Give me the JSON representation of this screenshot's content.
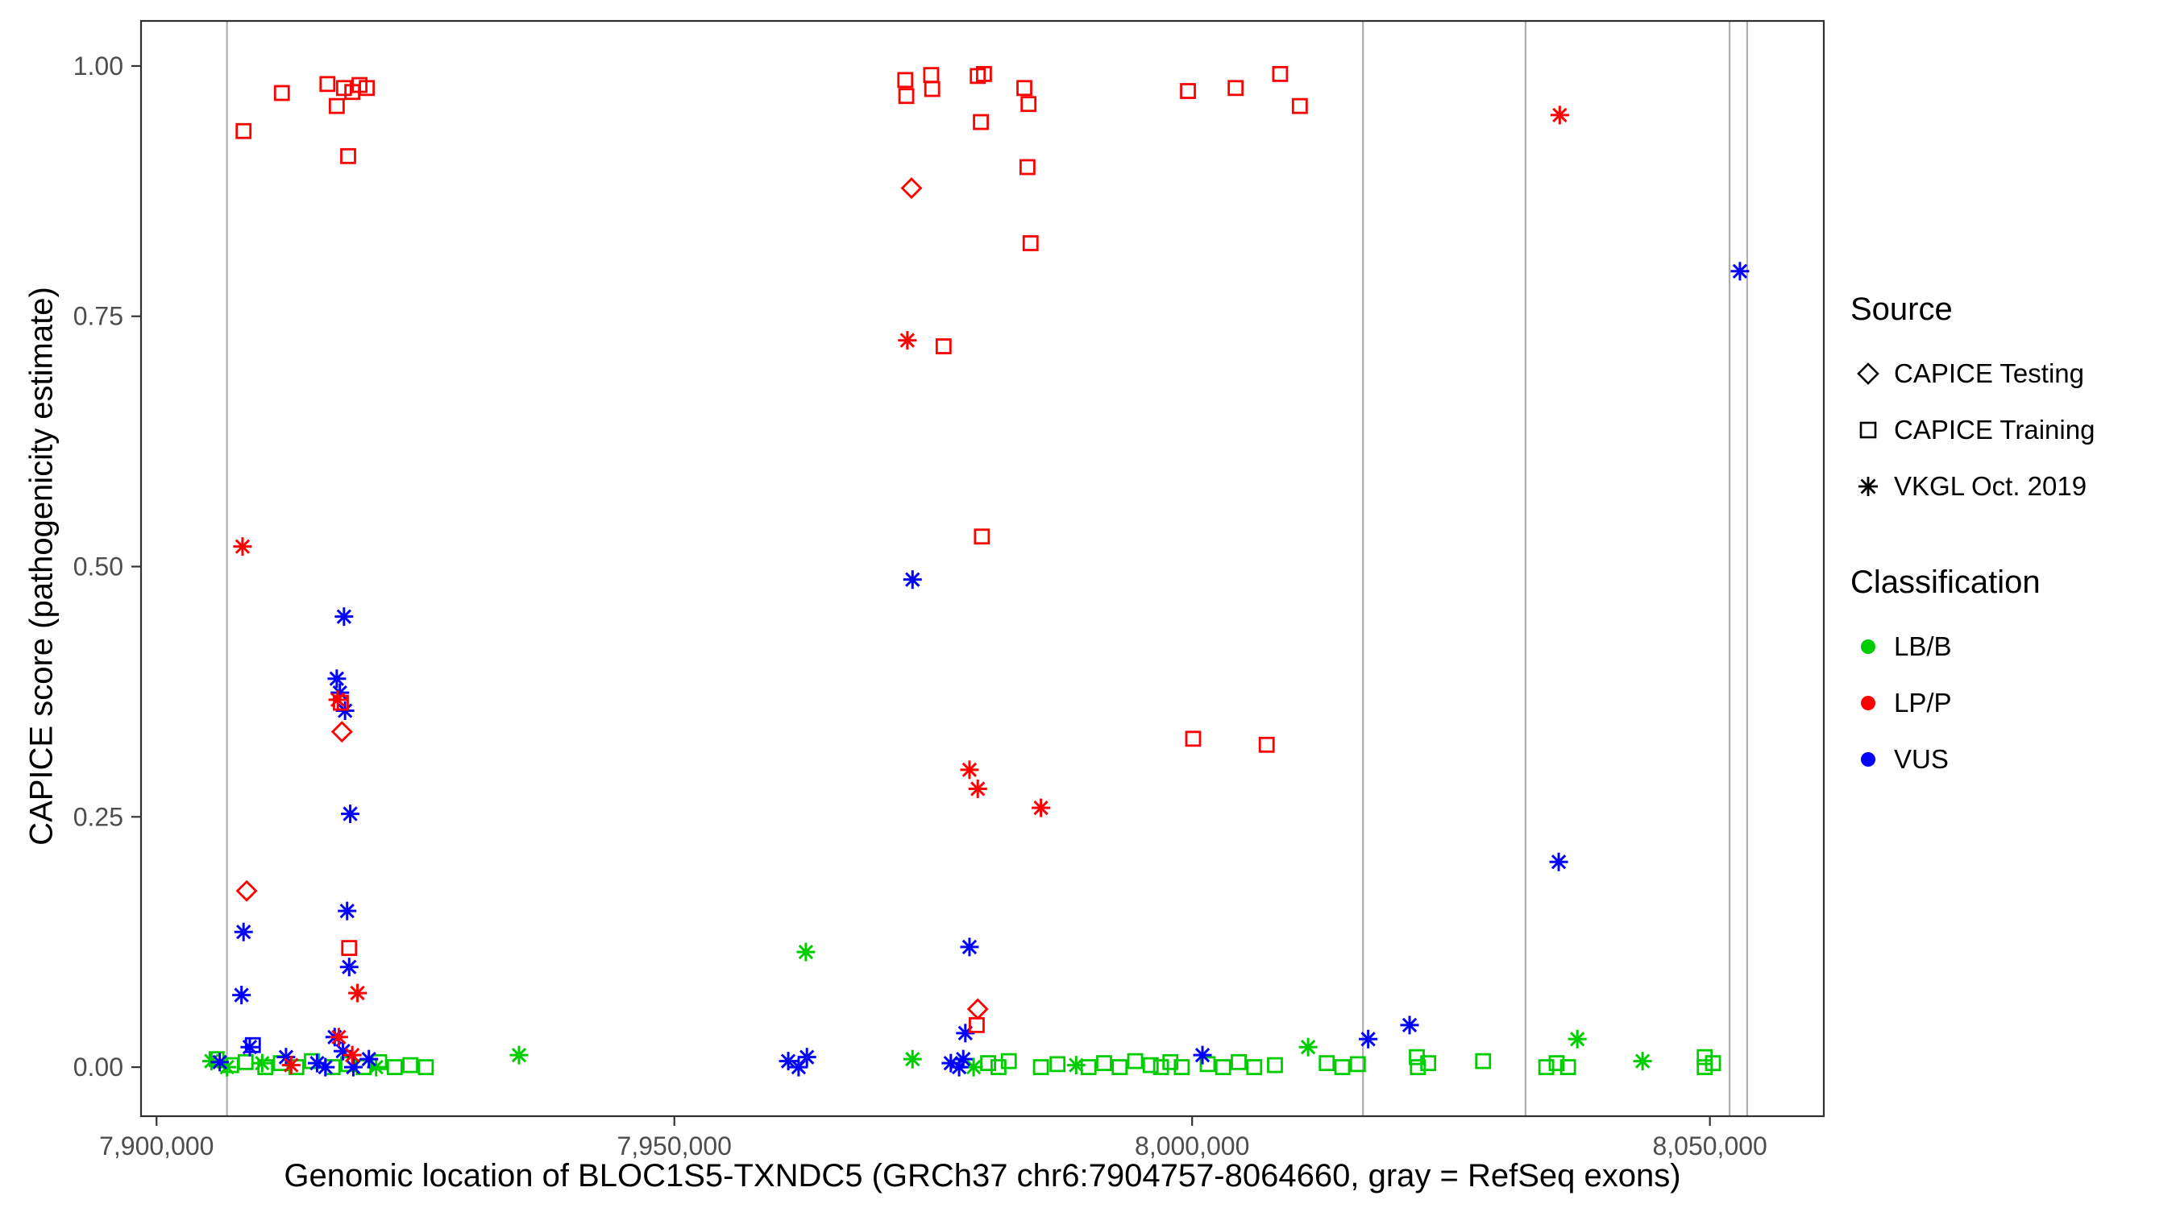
{
  "chart_data": {
    "type": "scatter",
    "title": "",
    "xlabel": "Genomic location of BLOC1S5-TXNDC5 (GRCh37 chr6:7904757-8064660, gray = RefSeq exons)",
    "ylabel": "CAPICE score (pathogenicity estimate)",
    "x_domain": [
      7898500,
      8061000
    ],
    "y_domain": [
      -0.049,
      1.045
    ],
    "grid": false,
    "panel_border": true,
    "x_ticks": [
      {
        "value": 7900000,
        "label": "7,900,000"
      },
      {
        "value": 7950000,
        "label": "7,950,000"
      },
      {
        "value": 8000000,
        "label": "8,000,000"
      },
      {
        "value": 8050000,
        "label": "8,050,000"
      }
    ],
    "y_ticks": [
      {
        "value": 0.0,
        "label": "0.00"
      },
      {
        "value": 0.25,
        "label": "0.25"
      },
      {
        "value": 0.5,
        "label": "0.50"
      },
      {
        "value": 0.75,
        "label": "0.75"
      },
      {
        "value": 1.0,
        "label": "1.00"
      }
    ],
    "exon_lines": {
      "color": "#ADADAD",
      "positions": [
        7906800,
        8016500,
        8032200,
        8051900,
        8053600
      ]
    },
    "legend": {
      "source": {
        "title": "Source",
        "items": [
          {
            "label": "CAPICE Testing",
            "shape": "diamond"
          },
          {
            "label": "CAPICE Training",
            "shape": "square"
          },
          {
            "label": "VKGL Oct. 2019",
            "shape": "asterisk"
          }
        ]
      },
      "classification": {
        "title": "Classification",
        "items": [
          {
            "label": "LB/B",
            "color": "#00CD00"
          },
          {
            "label": "LP/P",
            "color": "#FF0000"
          },
          {
            "label": "VUS",
            "color": "#0000FF"
          }
        ]
      }
    },
    "shape_map": {
      "CAPICE Testing": "diamond",
      "CAPICE Training": "square",
      "VKGL Oct. 2019": "asterisk"
    },
    "color_map": {
      "LB/B": "#00CD00",
      "LP/P": "#FF0000",
      "VUS": "#0000FF"
    },
    "series": [
      {
        "source": "CAPICE Training",
        "classification": "LP/P",
        "points": [
          [
            7908400,
            0.935
          ],
          [
            7912100,
            0.973
          ],
          [
            7916500,
            0.982
          ],
          [
            7917400,
            0.96
          ],
          [
            7918100,
            0.978
          ],
          [
            7918900,
            0.974
          ],
          [
            7919600,
            0.981
          ],
          [
            7920300,
            0.978
          ],
          [
            7918500,
            0.91
          ],
          [
            7917800,
            0.364
          ],
          [
            7918600,
            0.119
          ],
          [
            7972300,
            0.986
          ],
          [
            7972400,
            0.97
          ],
          [
            7974800,
            0.991
          ],
          [
            7974900,
            0.977
          ],
          [
            7976000,
            0.72
          ],
          [
            7979300,
            0.99
          ],
          [
            7979900,
            0.992
          ],
          [
            7979600,
            0.944
          ],
          [
            7979700,
            0.53
          ],
          [
            7983800,
            0.978
          ],
          [
            7984200,
            0.962
          ],
          [
            7984100,
            0.899
          ],
          [
            7984400,
            0.823
          ],
          [
            7979200,
            0.042
          ],
          [
            7999600,
            0.975
          ],
          [
            8000100,
            0.328
          ],
          [
            8004200,
            0.978
          ],
          [
            8007200,
            0.322
          ],
          [
            8008500,
            0.992
          ],
          [
            8010400,
            0.96
          ]
        ]
      },
      {
        "source": "CAPICE Training",
        "classification": "LB/B",
        "points": [
          [
            7905800,
            0.008
          ],
          [
            7907200,
            0.002
          ],
          [
            7908600,
            0.005
          ],
          [
            7910500,
            0.0
          ],
          [
            7912000,
            0.004
          ],
          [
            7913500,
            0.0
          ],
          [
            7915000,
            0.006
          ],
          [
            7917000,
            0.0
          ],
          [
            7918500,
            0.003
          ],
          [
            7920000,
            0.0
          ],
          [
            7921500,
            0.005
          ],
          [
            7923000,
            0.0
          ],
          [
            7924500,
            0.002
          ],
          [
            7926000,
            0.0
          ],
          [
            7980300,
            0.004
          ],
          [
            7981300,
            0.0
          ],
          [
            7982300,
            0.006
          ],
          [
            7985400,
            0.0
          ],
          [
            7987000,
            0.003
          ],
          [
            7990000,
            0.0
          ],
          [
            7991500,
            0.004
          ],
          [
            7993000,
            0.0
          ],
          [
            7994500,
            0.006
          ],
          [
            7996000,
            0.002
          ],
          [
            7997000,
            0.0
          ],
          [
            7997900,
            0.005
          ],
          [
            7999000,
            0.0
          ],
          [
            8001500,
            0.003
          ],
          [
            8003000,
            0.0
          ],
          [
            8004500,
            0.005
          ],
          [
            8006000,
            0.0
          ],
          [
            8008000,
            0.002
          ],
          [
            8013000,
            0.004
          ],
          [
            8014500,
            0.0
          ],
          [
            8016000,
            0.003
          ],
          [
            8021700,
            0.01
          ],
          [
            8021800,
            0.0
          ],
          [
            8022800,
            0.004
          ],
          [
            8028100,
            0.006
          ],
          [
            8034200,
            0.0
          ],
          [
            8035200,
            0.004
          ],
          [
            8036300,
            0.0
          ],
          [
            8049500,
            0.01
          ],
          [
            8049500,
            0.0
          ],
          [
            8050300,
            0.004
          ]
        ]
      },
      {
        "source": "CAPICE Training",
        "classification": "VUS",
        "points": [
          [
            7909300,
            0.022
          ]
        ]
      },
      {
        "source": "CAPICE Testing",
        "classification": "LP/P",
        "points": [
          [
            7908700,
            0.176
          ],
          [
            7917900,
            0.335
          ],
          [
            7972900,
            0.878
          ],
          [
            7979300,
            0.058
          ]
        ]
      },
      {
        "source": "VKGL Oct. 2019",
        "classification": "LP/P",
        "points": [
          [
            7908300,
            0.52
          ],
          [
            7917500,
            0.367
          ],
          [
            7919400,
            0.074
          ],
          [
            7913000,
            0.002
          ],
          [
            7917600,
            0.03
          ],
          [
            7918900,
            0.012
          ],
          [
            7972500,
            0.726
          ],
          [
            7978500,
            0.297
          ],
          [
            7979300,
            0.278
          ],
          [
            7985400,
            0.259
          ],
          [
            8035500,
            0.951
          ]
        ]
      },
      {
        "source": "VKGL Oct. 2019",
        "classification": "LB/B",
        "points": [
          [
            7905300,
            0.006
          ],
          [
            7906800,
            0.0
          ],
          [
            7910200,
            0.004
          ],
          [
            7921200,
            0.0
          ],
          [
            7935000,
            0.012
          ],
          [
            7962700,
            0.115
          ],
          [
            7973000,
            0.008
          ],
          [
            7978900,
            0.0
          ],
          [
            7988800,
            0.002
          ],
          [
            8011200,
            0.02
          ],
          [
            8037200,
            0.028
          ],
          [
            8043500,
            0.006
          ]
        ]
      },
      {
        "source": "VKGL Oct. 2019",
        "classification": "VUS",
        "points": [
          [
            7908400,
            0.135
          ],
          [
            7908200,
            0.072
          ],
          [
            7906100,
            0.005
          ],
          [
            7909000,
            0.02
          ],
          [
            7912500,
            0.01
          ],
          [
            7915500,
            0.004
          ],
          [
            7916300,
            0.0
          ],
          [
            7917200,
            0.03
          ],
          [
            7918000,
            0.016
          ],
          [
            7919000,
            0.0
          ],
          [
            7920500,
            0.008
          ],
          [
            7918100,
            0.45
          ],
          [
            7917400,
            0.388
          ],
          [
            7917700,
            0.374
          ],
          [
            7918200,
            0.356
          ],
          [
            7918700,
            0.253
          ],
          [
            7918400,
            0.156
          ],
          [
            7918600,
            0.1
          ],
          [
            7961000,
            0.006
          ],
          [
            7962000,
            0.0
          ],
          [
            7962800,
            0.01
          ],
          [
            7973000,
            0.487
          ],
          [
            7976700,
            0.004
          ],
          [
            7977500,
            0.0
          ],
          [
            7977900,
            0.008
          ],
          [
            7978500,
            0.12
          ],
          [
            7978100,
            0.034
          ],
          [
            8001000,
            0.012
          ],
          [
            8017000,
            0.028
          ],
          [
            8021000,
            0.042
          ],
          [
            8035400,
            0.205
          ],
          [
            8052900,
            0.795
          ]
        ]
      }
    ]
  }
}
